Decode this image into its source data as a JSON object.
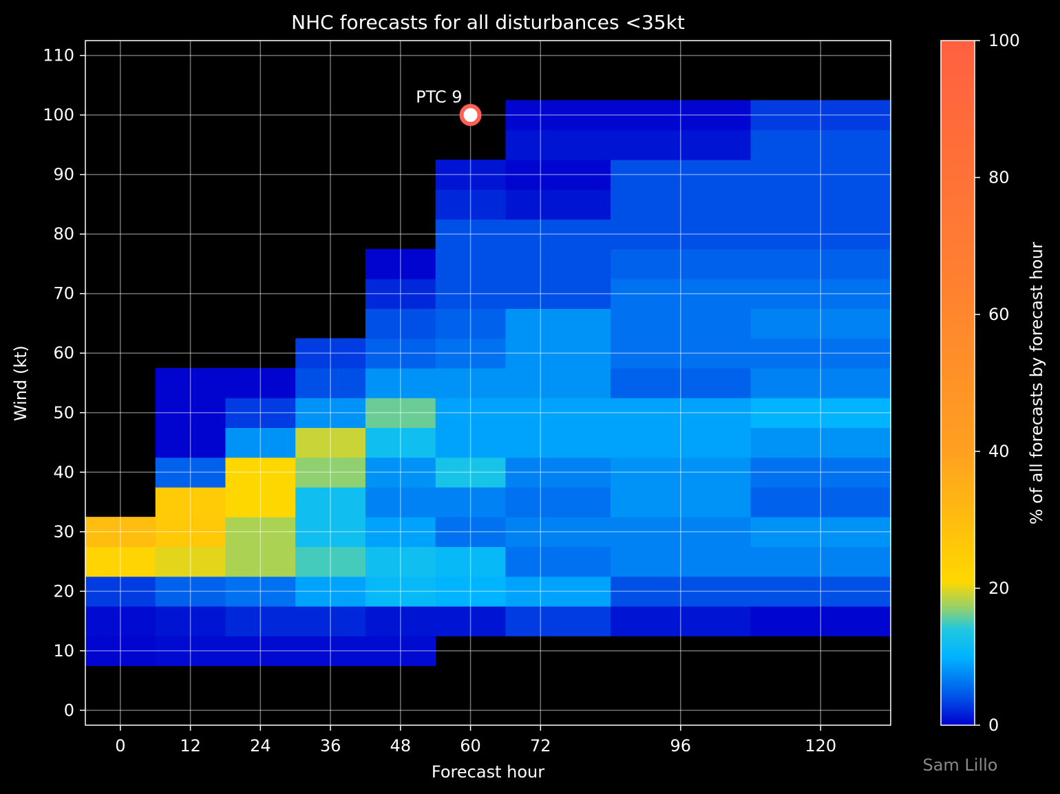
{
  "chart_data": {
    "type": "heatmap",
    "title": "NHC forecasts for all disturbances <35kt",
    "xlabel": "Forecast hour",
    "ylabel": "Wind (kt)",
    "xlim": [
      -6,
      132
    ],
    "ylim": [
      -2.5,
      112.5
    ],
    "x_ticks": [
      "0",
      "12",
      "24",
      "36",
      "48",
      "60",
      "72",
      "96",
      "120"
    ],
    "x_tick_values": [
      0,
      12,
      24,
      36,
      48,
      60,
      72,
      96,
      120
    ],
    "y_ticks": [
      "0",
      "10",
      "20",
      "30",
      "40",
      "50",
      "60",
      "70",
      "80",
      "90",
      "100",
      "110"
    ],
    "y_tick_values": [
      0,
      10,
      20,
      30,
      40,
      50,
      60,
      70,
      80,
      90,
      100,
      110
    ],
    "grid": true,
    "colorbar": {
      "label": "% of all forecasts by forecast hour",
      "range": [
        0,
        100
      ],
      "ticks": [
        "0",
        "20",
        "40",
        "60",
        "80",
        "100"
      ],
      "tick_values": [
        0,
        20,
        40,
        60,
        80,
        100
      ],
      "colors": [
        "#0000cd",
        "#0050e8",
        "#00b4ff",
        "#20c8e0",
        "#90d070",
        "#ffd700",
        "#ffa020",
        "#ff8030",
        "#ff6040"
      ]
    },
    "columns": [
      {
        "x0": -6,
        "x1": 6,
        "cells": [
          [
            10,
            0.3
          ],
          [
            15,
            0.5
          ],
          [
            20,
            3
          ],
          [
            25,
            22
          ],
          [
            30,
            30
          ]
        ]
      },
      {
        "x0": 6,
        "x1": 18,
        "cells": [
          [
            10,
            0.5
          ],
          [
            15,
            1
          ],
          [
            20,
            5
          ],
          [
            25,
            20
          ],
          [
            30,
            26
          ],
          [
            35,
            25
          ],
          [
            40,
            5
          ],
          [
            45,
            0.2
          ],
          [
            50,
            0.2
          ],
          [
            55,
            0.2
          ]
        ]
      },
      {
        "x0": 18,
        "x1": 30,
        "cells": [
          [
            10,
            0.5
          ],
          [
            15,
            2
          ],
          [
            20,
            6
          ],
          [
            25,
            18
          ],
          [
            30,
            18
          ],
          [
            35,
            21
          ],
          [
            40,
            21
          ],
          [
            45,
            8
          ],
          [
            50,
            3
          ],
          [
            55,
            0.2
          ]
        ]
      },
      {
        "x0": 30,
        "x1": 42,
        "cells": [
          [
            10,
            0.5
          ],
          [
            15,
            2
          ],
          [
            20,
            9
          ],
          [
            25,
            15
          ],
          [
            30,
            12
          ],
          [
            35,
            12
          ],
          [
            40,
            17
          ],
          [
            45,
            19
          ],
          [
            50,
            8
          ],
          [
            55,
            4
          ],
          [
            60,
            3
          ]
        ]
      },
      {
        "x0": 42,
        "x1": 54,
        "cells": [
          [
            10,
            0.5
          ],
          [
            15,
            1
          ],
          [
            20,
            11
          ],
          [
            25,
            12
          ],
          [
            30,
            9
          ],
          [
            35,
            7
          ],
          [
            40,
            8
          ],
          [
            45,
            12
          ],
          [
            50,
            16
          ],
          [
            55,
            8
          ],
          [
            60,
            5
          ],
          [
            65,
            4
          ],
          [
            70,
            2
          ],
          [
            75,
            0.2
          ]
        ]
      },
      {
        "x0": 54,
        "x1": 66,
        "cells": [
          [
            15,
            1
          ],
          [
            20,
            10
          ],
          [
            25,
            11
          ],
          [
            30,
            6
          ],
          [
            35,
            7
          ],
          [
            40,
            13
          ],
          [
            45,
            9
          ],
          [
            50,
            9
          ],
          [
            55,
            8
          ],
          [
            60,
            6
          ],
          [
            65,
            5
          ],
          [
            70,
            4
          ],
          [
            75,
            4
          ],
          [
            80,
            4
          ],
          [
            85,
            2
          ],
          [
            90,
            1
          ]
        ]
      },
      {
        "x0": 66,
        "x1": 84,
        "cells": [
          [
            15,
            3
          ],
          [
            20,
            9
          ],
          [
            25,
            6
          ],
          [
            30,
            7
          ],
          [
            35,
            6
          ],
          [
            40,
            7
          ],
          [
            45,
            9
          ],
          [
            50,
            9
          ],
          [
            55,
            8
          ],
          [
            60,
            8
          ],
          [
            65,
            8
          ],
          [
            70,
            4
          ],
          [
            75,
            4
          ],
          [
            80,
            4
          ],
          [
            85,
            1
          ],
          [
            90,
            0.3
          ],
          [
            95,
            1
          ],
          [
            100,
            0.3
          ]
        ]
      },
      {
        "x0": 84,
        "x1": 108,
        "cells": [
          [
            15,
            1
          ],
          [
            20,
            4
          ],
          [
            25,
            7
          ],
          [
            30,
            7
          ],
          [
            35,
            8
          ],
          [
            40,
            8
          ],
          [
            45,
            9
          ],
          [
            50,
            9
          ],
          [
            55,
            5
          ],
          [
            60,
            6
          ],
          [
            65,
            6
          ],
          [
            70,
            6
          ],
          [
            75,
            5
          ],
          [
            80,
            4
          ],
          [
            85,
            4
          ],
          [
            90,
            4
          ],
          [
            95,
            1
          ],
          [
            100,
            0.3
          ]
        ]
      },
      {
        "x0": 108,
        "x1": 132,
        "cells": [
          [
            15,
            0.3
          ],
          [
            20,
            4
          ],
          [
            25,
            7
          ],
          [
            30,
            8
          ],
          [
            35,
            5
          ],
          [
            40,
            6
          ],
          [
            45,
            8
          ],
          [
            50,
            10
          ],
          [
            55,
            7
          ],
          [
            60,
            6
          ],
          [
            65,
            7
          ],
          [
            70,
            6
          ],
          [
            75,
            5
          ],
          [
            80,
            4
          ],
          [
            85,
            4
          ],
          [
            90,
            4
          ],
          [
            95,
            4
          ],
          [
            100,
            3
          ]
        ]
      }
    ],
    "annotation": {
      "label": "PTC 9",
      "x": 60,
      "y": 100,
      "color": "#ff6050"
    }
  },
  "credit": "Sam Lillo"
}
